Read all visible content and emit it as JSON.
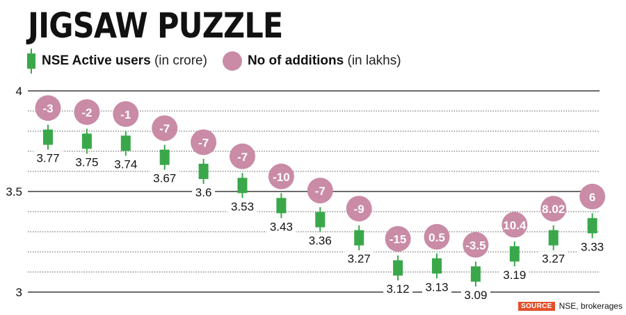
{
  "title": "JIGSAW PUZZLE",
  "legend": {
    "series1_label": "NSE Active users",
    "series1_unit": "(in crore)",
    "series2_label": "No of additions",
    "series2_unit": "(in lakhs)"
  },
  "source": {
    "tag": "SOURCE",
    "text": "NSE, brokerages"
  },
  "colors": {
    "candle": "#3aa84a",
    "bubble": "#c98ba6",
    "source_tag": "#e2512c"
  },
  "chart_data": {
    "type": "candlestick-bubble",
    "title": "JIGSAW PUZZLE",
    "ylim": [
      3,
      4
    ],
    "yticks": [
      {
        "value": 4,
        "label": "4"
      },
      {
        "value": 3.5,
        "label": "3.5"
      },
      {
        "value": 3,
        "label": "3"
      }
    ],
    "minor_gridlines": [
      3.1,
      3.2,
      3.3,
      3.4,
      3.6,
      3.7,
      3.8,
      3.9
    ],
    "series": [
      {
        "name": "NSE Active users (in crore)",
        "values": [
          3.77,
          3.75,
          3.74,
          3.67,
          3.6,
          3.53,
          3.43,
          3.36,
          3.27,
          3.12,
          3.13,
          3.09,
          3.19,
          3.27,
          3.33
        ],
        "labels": [
          "3.77",
          "3.75",
          "3.74",
          "3.67",
          "3.6",
          "3.53",
          "3.43",
          "3.36",
          "3.27",
          "3.12",
          "3.13",
          "3.09",
          "3.19",
          "3.27",
          "3.33"
        ]
      },
      {
        "name": "No of additions (in lakhs)",
        "values": [
          -3,
          -2,
          -1,
          -7,
          -7,
          -7,
          -10,
          -7,
          -9,
          -15,
          0.5,
          -3.5,
          10.4,
          8.02,
          6
        ],
        "labels": [
          "-3",
          "-2",
          "-1",
          "-7",
          "-7",
          "-7",
          "-10",
          "-7",
          "-9",
          "-15",
          "0.5",
          "-3.5",
          "10.4",
          "8.02",
          "6"
        ]
      }
    ]
  }
}
